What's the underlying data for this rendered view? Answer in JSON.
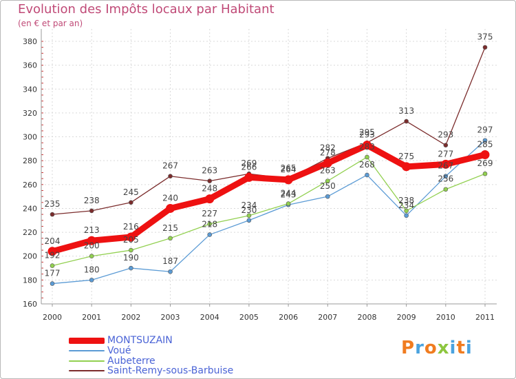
{
  "chart_data": {
    "type": "line",
    "title": "Evolution des Impôts locaux par Habitant",
    "subtitle": "(en € et par an)",
    "xlabel": "",
    "ylabel": "",
    "categories": [
      "2000",
      "2001",
      "2002",
      "2003",
      "2004",
      "2005",
      "2006",
      "2007",
      "2008",
      "2009",
      "2010",
      "2011"
    ],
    "ylim": [
      160,
      380
    ],
    "yticks": [
      "160",
      "180",
      "200",
      "220",
      "240",
      "260",
      "280",
      "300",
      "320",
      "340",
      "360",
      "380"
    ],
    "grid": true,
    "legend_position": "bottom-left",
    "series": [
      {
        "name": "MONTSUZAIN",
        "color": "#ee1111",
        "values": [
          204,
          213,
          216,
          240,
          248,
          266,
          264,
          278,
          293,
          275,
          277,
          285
        ]
      },
      {
        "name": "Voué",
        "color": "#5b9bd5",
        "values": [
          177,
          180,
          190,
          187,
          218,
          230,
          243,
          250,
          268,
          234,
          267,
          297
        ]
      },
      {
        "name": "Aubeterre",
        "color": "#92d050",
        "values": [
          192,
          200,
          205,
          215,
          227,
          234,
          244,
          263,
          283,
          238,
          256,
          269
        ]
      },
      {
        "name": "Saint-Remy-sous-Barbuise",
        "color": "#7b2c2c",
        "values": [
          235,
          238,
          245,
          267,
          263,
          269,
          265,
          282,
          295,
          313,
          293,
          375
        ]
      }
    ]
  },
  "logo": {
    "letters": [
      "P",
      "r",
      "o",
      "x",
      "i",
      "t",
      "i"
    ],
    "colors": [
      "#f07c20",
      "#4aa3df",
      "#f07c20",
      "#8dc63f",
      "#4aa3df",
      "#f07c20",
      "#4aa3df"
    ]
  }
}
